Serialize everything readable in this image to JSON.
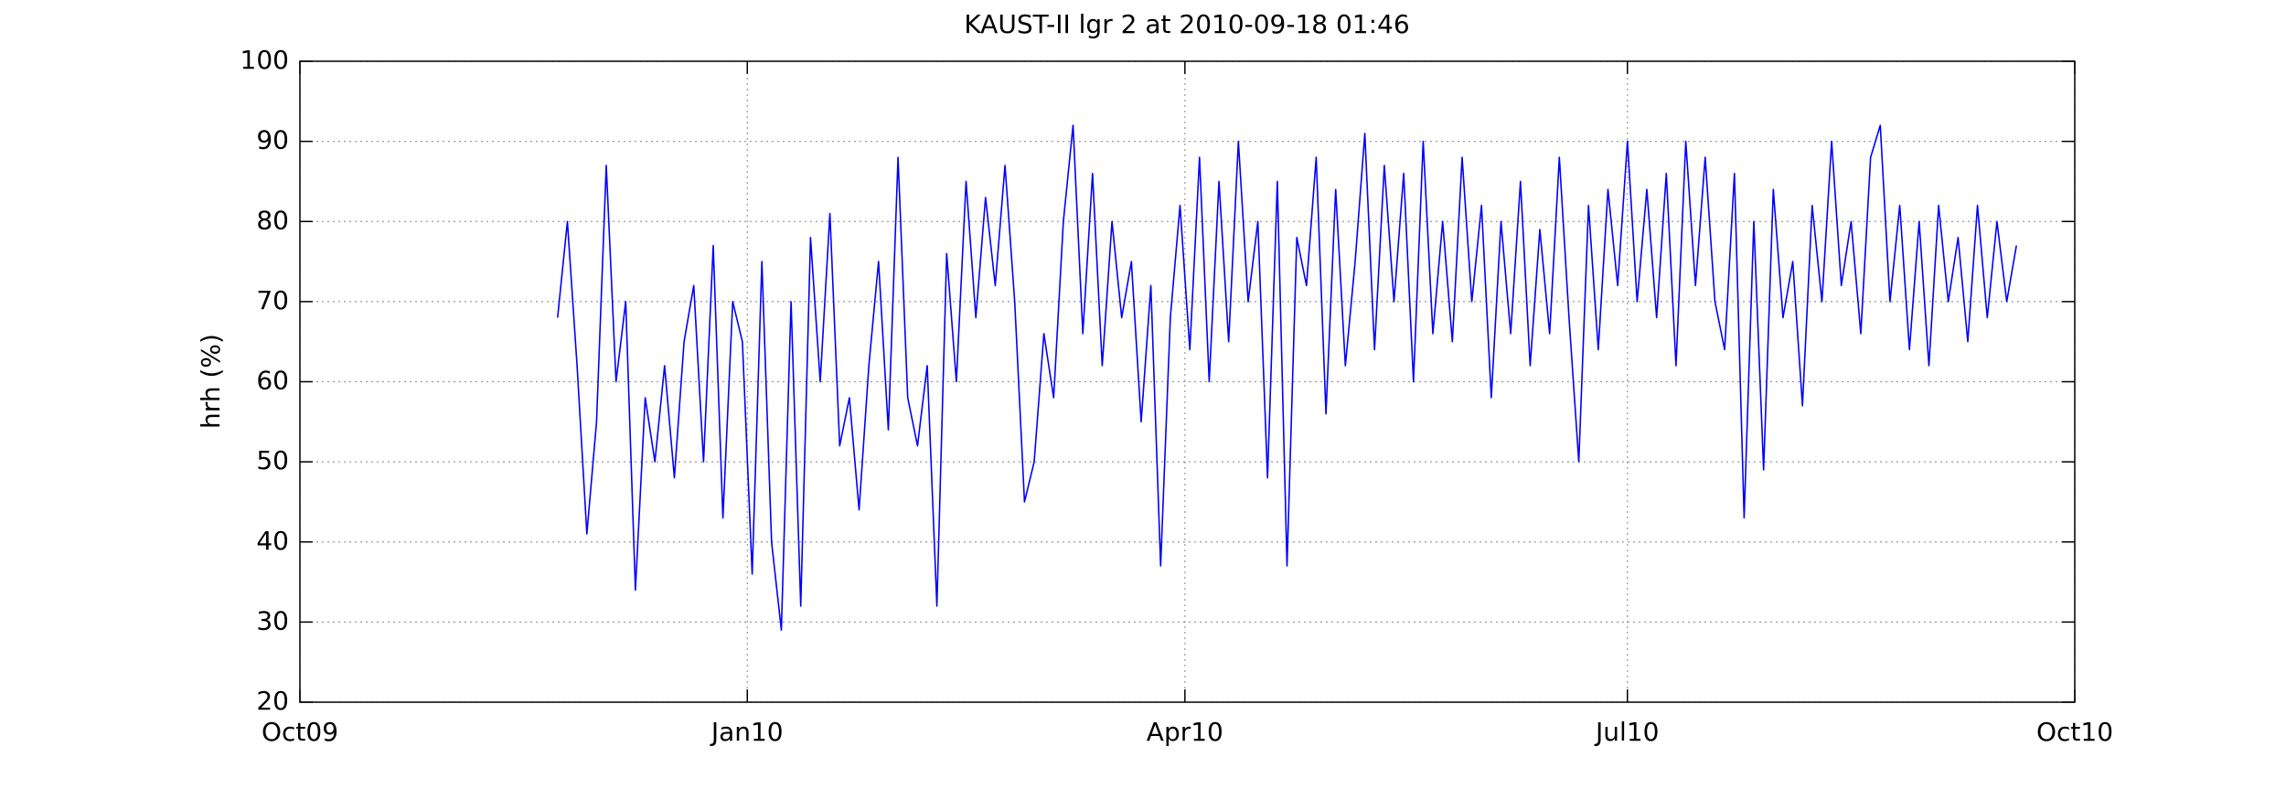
{
  "chart_data": {
    "type": "line",
    "title": "KAUST-II lgr 2 at 2010-09-18 01:46",
    "ylabel": "hrh (%)",
    "color": "#0000ff",
    "grid": true,
    "xlim": [
      0,
      365
    ],
    "xticks": [
      {
        "value": 0,
        "label": "Oct09"
      },
      {
        "value": 92,
        "label": "Jan10"
      },
      {
        "value": 182,
        "label": "Apr10"
      },
      {
        "value": 273,
        "label": "Jul10"
      },
      {
        "value": 365,
        "label": "Oct10"
      }
    ],
    "ylim": [
      20,
      100
    ],
    "yticks": [
      20,
      30,
      40,
      50,
      60,
      70,
      80,
      90,
      100
    ],
    "x": [
      53,
      55,
      57,
      59,
      61,
      63,
      65,
      67,
      69,
      71,
      73,
      75,
      77,
      79,
      81,
      83,
      85,
      87,
      89,
      91,
      93,
      95,
      97,
      99,
      101,
      103,
      105,
      107,
      109,
      111,
      113,
      115,
      117,
      119,
      121,
      123,
      125,
      127,
      129,
      131,
      133,
      135,
      137,
      139,
      141,
      143,
      145,
      147,
      149,
      151,
      153,
      155,
      157,
      159,
      161,
      163,
      165,
      167,
      169,
      171,
      173,
      175,
      177,
      179,
      181,
      183,
      185,
      187,
      189,
      191,
      193,
      195,
      197,
      199,
      201,
      203,
      205,
      207,
      209,
      211,
      213,
      215,
      217,
      219,
      221,
      223,
      225,
      227,
      229,
      231,
      233,
      235,
      237,
      239,
      241,
      243,
      245,
      247,
      249,
      251,
      253,
      255,
      257,
      259,
      261,
      263,
      265,
      267,
      269,
      271,
      273,
      275,
      277,
      279,
      281,
      283,
      285,
      287,
      289,
      291,
      293,
      295,
      297,
      299,
      301,
      303,
      305,
      307,
      309,
      311,
      313,
      315,
      317,
      319,
      321,
      323,
      325,
      327,
      329,
      331,
      333,
      335,
      337,
      339,
      341,
      343,
      345,
      347,
      349,
      351,
      353
    ],
    "values": [
      68,
      80,
      62,
      41,
      55,
      87,
      60,
      70,
      34,
      58,
      50,
      62,
      48,
      65,
      72,
      50,
      77,
      43,
      70,
      65,
      36,
      75,
      40,
      29,
      70,
      32,
      78,
      60,
      81,
      52,
      58,
      44,
      62,
      75,
      54,
      88,
      58,
      52,
      62,
      32,
      76,
      60,
      85,
      68,
      83,
      72,
      87,
      70,
      45,
      50,
      66,
      58,
      80,
      92,
      66,
      86,
      62,
      80,
      68,
      75,
      55,
      72,
      37,
      68,
      82,
      64,
      88,
      60,
      85,
      65,
      90,
      70,
      80,
      48,
      85,
      37,
      78,
      72,
      88,
      56,
      84,
      62,
      75,
      91,
      64,
      87,
      70,
      86,
      60,
      90,
      66,
      80,
      65,
      88,
      70,
      82,
      58,
      80,
      66,
      85,
      62,
      79,
      66,
      88,
      68,
      50,
      82,
      64,
      84,
      72,
      90,
      70,
      84,
      68,
      86,
      62,
      90,
      72,
      88,
      70,
      64,
      86,
      43,
      80,
      49,
      84,
      68,
      75,
      57,
      82,
      70,
      90,
      72,
      80,
      66,
      88,
      92,
      70,
      82,
      64,
      80,
      62,
      82,
      70,
      78,
      65,
      82,
      68,
      80,
      70,
      77
    ]
  }
}
